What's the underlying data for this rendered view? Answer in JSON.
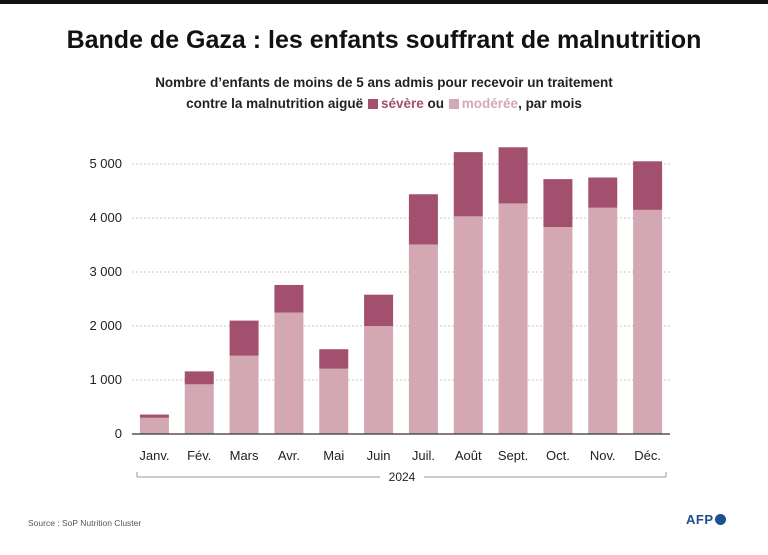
{
  "title": "Bande de Gaza : les enfants souffrant de malnutrition",
  "subtitle": {
    "line1": "Nombre d’enfants de moins de 5 ans admis pour recevoir un traitement",
    "line2_prefix": "contre la malnutrition aiguë",
    "severe_word": "sévère",
    "or_word": "ou",
    "moderate_word": "modérée",
    "suffix": ", par mois"
  },
  "colors": {
    "severe": "#a3506f",
    "moderate": "#d4a8b2",
    "axis": "#333333",
    "grid": "#c8c8c8"
  },
  "chart_data": {
    "type": "bar",
    "stacked": true,
    "categories": [
      "Janv.",
      "Fév.",
      "Mars",
      "Avr.",
      "Mai",
      "Juin",
      "Juil.",
      "Août",
      "Sept.",
      "Oct.",
      "Nov.",
      "Déc."
    ],
    "series": [
      {
        "name": "modérée",
        "values": [
          300,
          920,
          1450,
          2250,
          1210,
          2000,
          3510,
          4030,
          4270,
          3830,
          4190,
          4150
        ]
      },
      {
        "name": "sévère",
        "values": [
          60,
          240,
          650,
          510,
          360,
          580,
          930,
          1190,
          1040,
          890,
          560,
          900
        ]
      }
    ],
    "ylim": [
      0,
      5500
    ],
    "yticks": [
      0,
      1000,
      2000,
      3000,
      4000,
      5000
    ],
    "ytick_labels": [
      "0",
      "1 000",
      "2 000",
      "3 000",
      "4 000",
      "5 000"
    ],
    "year_label": "2024",
    "grid": true
  },
  "source": "Source : SoP Nutrition Cluster",
  "logo": "AFP"
}
